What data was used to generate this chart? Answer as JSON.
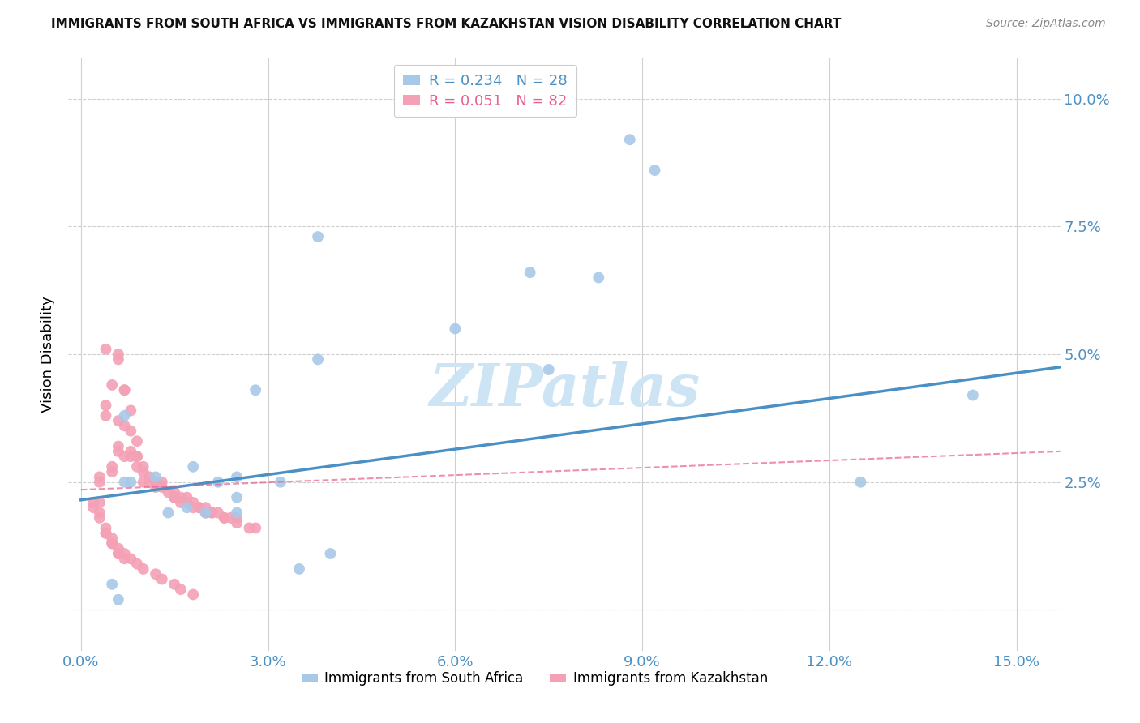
{
  "title": "IMMIGRANTS FROM SOUTH AFRICA VS IMMIGRANTS FROM KAZAKHSTAN VISION DISABILITY CORRELATION CHART",
  "source": "Source: ZipAtlas.com",
  "ylabel": "Vision Disability",
  "yticks": [
    0.0,
    0.025,
    0.05,
    0.075,
    0.1
  ],
  "ytick_labels": [
    "",
    "2.5%",
    "5.0%",
    "7.5%",
    "10.0%"
  ],
  "xticks": [
    0.0,
    0.03,
    0.06,
    0.09,
    0.12,
    0.15
  ],
  "xtick_labels": [
    "0.0%",
    "3.0%",
    "6.0%",
    "9.0%",
    "12.0%",
    "15.0%"
  ],
  "xlim": [
    -0.002,
    0.157
  ],
  "ylim": [
    -0.008,
    0.108
  ],
  "blue_color": "#a8c8e8",
  "pink_color": "#f4a0b5",
  "trend_blue_color": "#4a90c4",
  "trend_pink_color": "#e86090",
  "axis_label_color": "#4a90c4",
  "legend_R_blue": "0.234",
  "legend_N_blue": "28",
  "legend_R_pink": "0.051",
  "legend_N_pink": "82",
  "south_africa_x": [
    0.038,
    0.06,
    0.072,
    0.075,
    0.088,
    0.092,
    0.125,
    0.143,
    0.007,
    0.012,
    0.014,
    0.017,
    0.018,
    0.02,
    0.022,
    0.025,
    0.028,
    0.032,
    0.035,
    0.04,
    0.005,
    0.006,
    0.007,
    0.008,
    0.038,
    0.083,
    0.025,
    0.025
  ],
  "south_africa_y": [
    0.049,
    0.055,
    0.066,
    0.047,
    0.092,
    0.086,
    0.025,
    0.042,
    0.038,
    0.026,
    0.019,
    0.02,
    0.028,
    0.019,
    0.025,
    0.022,
    0.043,
    0.025,
    0.008,
    0.011,
    0.005,
    0.002,
    0.025,
    0.025,
    0.073,
    0.065,
    0.026,
    0.019
  ],
  "kazakhstan_x": [
    0.004,
    0.006,
    0.006,
    0.007,
    0.007,
    0.008,
    0.009,
    0.009,
    0.01,
    0.01,
    0.011,
    0.012,
    0.013,
    0.014,
    0.015,
    0.015,
    0.016,
    0.017,
    0.018,
    0.019,
    0.019,
    0.02,
    0.021,
    0.022,
    0.023,
    0.024,
    0.025,
    0.003,
    0.003,
    0.004,
    0.004,
    0.005,
    0.005,
    0.005,
    0.006,
    0.006,
    0.006,
    0.007,
    0.007,
    0.008,
    0.008,
    0.008,
    0.009,
    0.009,
    0.01,
    0.011,
    0.012,
    0.013,
    0.015,
    0.016,
    0.017,
    0.018,
    0.02,
    0.021,
    0.023,
    0.025,
    0.027,
    0.028,
    0.002,
    0.002,
    0.003,
    0.003,
    0.003,
    0.004,
    0.004,
    0.004,
    0.005,
    0.005,
    0.005,
    0.006,
    0.006,
    0.006,
    0.007,
    0.007,
    0.008,
    0.009,
    0.01,
    0.012,
    0.013,
    0.015,
    0.016,
    0.018
  ],
  "kazakhstan_y": [
    0.051,
    0.049,
    0.05,
    0.043,
    0.036,
    0.035,
    0.033,
    0.03,
    0.028,
    0.025,
    0.025,
    0.024,
    0.024,
    0.023,
    0.022,
    0.022,
    0.021,
    0.021,
    0.02,
    0.02,
    0.02,
    0.019,
    0.019,
    0.019,
    0.018,
    0.018,
    0.018,
    0.025,
    0.026,
    0.038,
    0.04,
    0.044,
    0.027,
    0.028,
    0.037,
    0.032,
    0.031,
    0.043,
    0.03,
    0.039,
    0.03,
    0.031,
    0.03,
    0.028,
    0.027,
    0.026,
    0.025,
    0.025,
    0.023,
    0.022,
    0.022,
    0.021,
    0.02,
    0.019,
    0.018,
    0.017,
    0.016,
    0.016,
    0.02,
    0.021,
    0.021,
    0.019,
    0.018,
    0.016,
    0.015,
    0.015,
    0.014,
    0.013,
    0.013,
    0.012,
    0.011,
    0.011,
    0.011,
    0.01,
    0.01,
    0.009,
    0.008,
    0.007,
    0.006,
    0.005,
    0.004,
    0.003
  ],
  "blue_trend_x": [
    0.0,
    0.157
  ],
  "blue_trend_y": [
    0.0215,
    0.0475
  ],
  "pink_trend_x": [
    0.0,
    0.157
  ],
  "pink_trend_y": [
    0.0235,
    0.031
  ],
  "watermark_text": "ZIPatlas",
  "watermark_color": "#cde4f5",
  "background_color": "#ffffff",
  "label_south_africa": "Immigrants from South Africa",
  "label_kazakhstan": "Immigrants from Kazakhstan"
}
